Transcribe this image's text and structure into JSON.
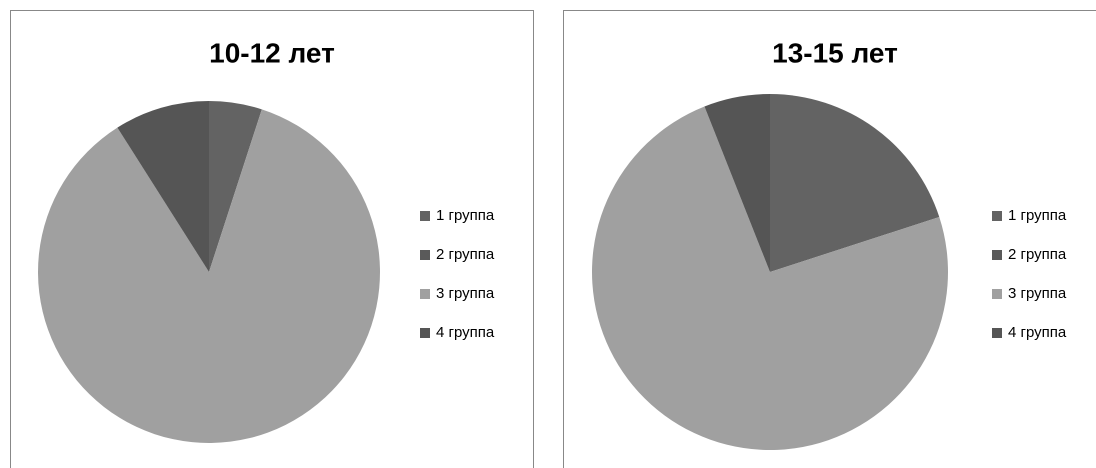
{
  "chart_data": [
    {
      "type": "pie",
      "title": "10-12 лет",
      "categories": [
        "1 группа",
        "2 группа",
        "3 группа",
        "4 группа"
      ],
      "values": [
        5,
        0,
        86,
        9
      ],
      "colors": [
        "#636363",
        "#5a5a5a",
        "#a0a0a0",
        "#555555"
      ]
    },
    {
      "type": "pie",
      "title": "13-15 лет",
      "categories": [
        "1 группа",
        "2 группа",
        "3 группа",
        "4 группа"
      ],
      "values": [
        20,
        0,
        74,
        6
      ],
      "colors": [
        "#636363",
        "#5a5a5a",
        "#a0a0a0",
        "#555555"
      ]
    }
  ]
}
